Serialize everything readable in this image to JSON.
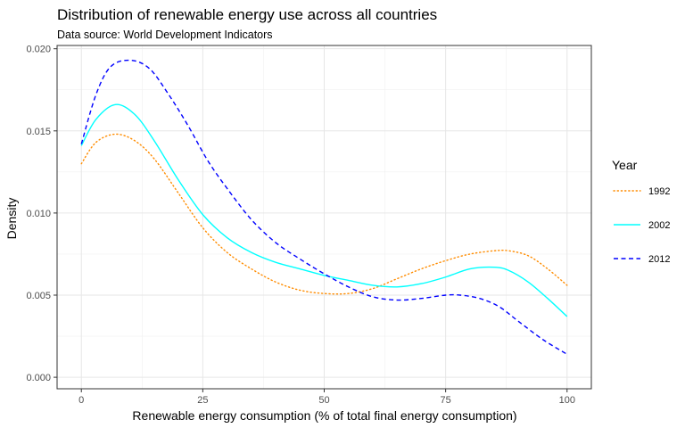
{
  "chart_data": {
    "type": "line",
    "title": "Distribution of renewable energy use across all countries",
    "subtitle": "Data source: World Development Indicators",
    "xlabel": "Renewable energy consumption (% of total final energy consumption)",
    "ylabel": "Density",
    "xlim": [
      -5,
      105
    ],
    "ylim": [
      -0.0007,
      0.0202
    ],
    "x_ticks": [
      0,
      25,
      50,
      75,
      100
    ],
    "x_tick_labels": [
      "0",
      "25",
      "50",
      "75",
      "100"
    ],
    "y_ticks": [
      0,
      0.005,
      0.01,
      0.015,
      0.02
    ],
    "y_tick_labels": [
      "0.000",
      "0.005",
      "0.010",
      "0.015",
      "0.020"
    ],
    "grid": true,
    "legend": {
      "title": "Year",
      "placement": "right"
    },
    "series": [
      {
        "name": "1992",
        "color": "#ff8c00",
        "dash": "dotted",
        "x": [
          0,
          3,
          7,
          11,
          15,
          20,
          25,
          30,
          35,
          40,
          45,
          50,
          55,
          60,
          65,
          70,
          75,
          80,
          85,
          88,
          92,
          96,
          100
        ],
        "y": [
          0.013,
          0.0143,
          0.0148,
          0.0144,
          0.0133,
          0.0112,
          0.0091,
          0.0076,
          0.0066,
          0.0058,
          0.0053,
          0.0051,
          0.0051,
          0.0054,
          0.006,
          0.0066,
          0.0071,
          0.0075,
          0.0077,
          0.0077,
          0.0074,
          0.0066,
          0.0056
        ]
      },
      {
        "name": "2002",
        "color": "#00ffff",
        "dash": "solid",
        "x": [
          0,
          3,
          7,
          11,
          15,
          20,
          25,
          30,
          35,
          40,
          45,
          50,
          55,
          60,
          65,
          70,
          75,
          80,
          85,
          88,
          92,
          96,
          100
        ],
        "y": [
          0.0141,
          0.0157,
          0.0166,
          0.016,
          0.0144,
          0.012,
          0.0099,
          0.0085,
          0.0076,
          0.007,
          0.0066,
          0.0062,
          0.0059,
          0.0056,
          0.0055,
          0.0057,
          0.0061,
          0.0066,
          0.0067,
          0.0065,
          0.0058,
          0.0048,
          0.0037
        ]
      },
      {
        "name": "2012",
        "color": "#0000ff",
        "dash": "dashed",
        "x": [
          0,
          3,
          6,
          10,
          14,
          18,
          22,
          26,
          30,
          35,
          40,
          45,
          50,
          55,
          60,
          65,
          70,
          75,
          78,
          82,
          86,
          90,
          95,
          100
        ],
        "y": [
          0.0142,
          0.0172,
          0.0189,
          0.0193,
          0.0188,
          0.0172,
          0.0153,
          0.0132,
          0.0115,
          0.0096,
          0.0082,
          0.0072,
          0.0063,
          0.0055,
          0.0049,
          0.0047,
          0.0048,
          0.005,
          0.005,
          0.0048,
          0.0043,
          0.0034,
          0.0023,
          0.0014
        ]
      }
    ]
  }
}
